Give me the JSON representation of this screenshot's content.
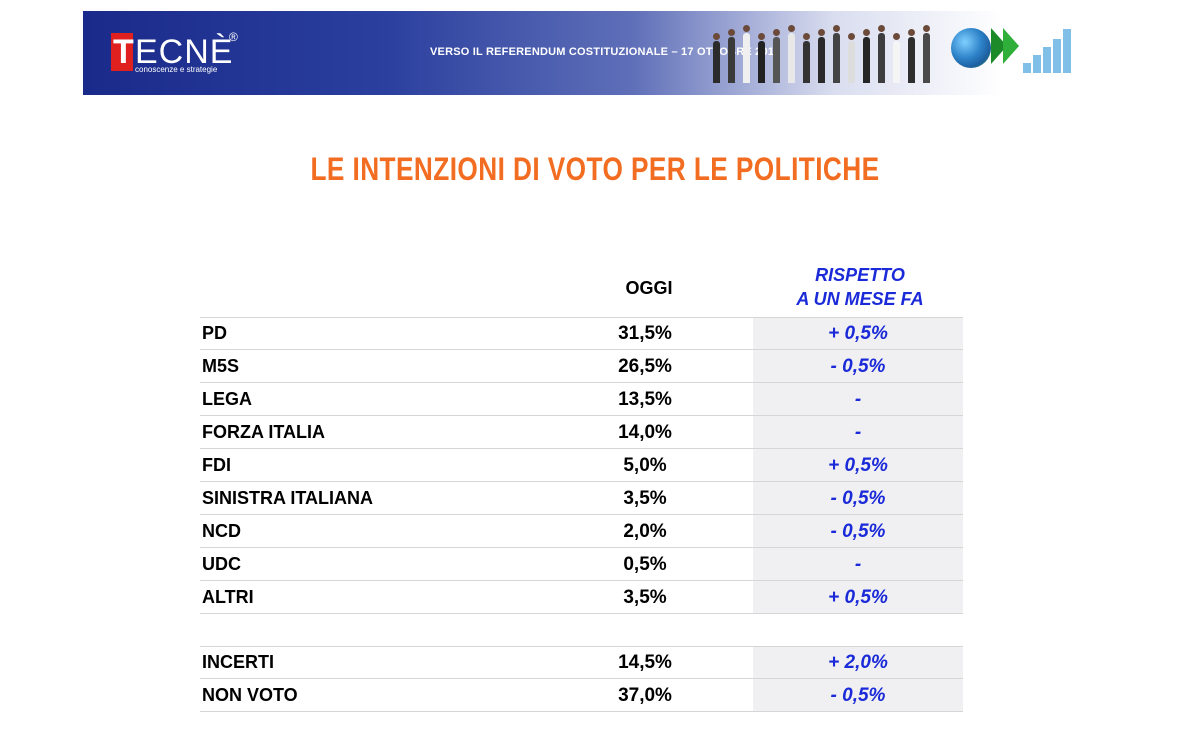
{
  "header": {
    "logo_initial": "T",
    "logo_rest": "ECNÈ",
    "logo_registered": "®",
    "logo_tagline": "conoscenze e strategie",
    "banner_text": "VERSO IL REFERENDUM COSTITUZIONALE – 17 OTTOBRE 2016"
  },
  "title": "LE INTENZIONI DI VOTO PER LE POLITICHE",
  "table": {
    "col_oggi": "OGGI",
    "col_rispetto_line1": "RISPETTO",
    "col_rispetto_line2": "A UN MESE FA",
    "rows": [
      {
        "party": "PD",
        "oggi": "31,5%",
        "delta": "+ 0,5%"
      },
      {
        "party": "M5S",
        "oggi": "26,5%",
        "delta": "- 0,5%"
      },
      {
        "party": "LEGA",
        "oggi": "13,5%",
        "delta": "-"
      },
      {
        "party": "FORZA ITALIA",
        "oggi": "14,0%",
        "delta": "-"
      },
      {
        "party": "FDI",
        "oggi": "5,0%",
        "delta": "+ 0,5%"
      },
      {
        "party": "SINISTRA ITALIANA",
        "oggi": "3,5%",
        "delta": "- 0,5%"
      },
      {
        "party": "NCD",
        "oggi": "2,0%",
        "delta": "- 0,5%"
      },
      {
        "party": "UDC",
        "oggi": "0,5%",
        "delta": "-"
      },
      {
        "party": "ALTRI",
        "oggi": "3,5%",
        "delta": "+ 0,5%"
      }
    ],
    "extra_rows": [
      {
        "party": "INCERTI",
        "oggi": "14,5%",
        "delta": "+ 2,0%"
      },
      {
        "party": "NON VOTO",
        "oggi": "37,0%",
        "delta": "- 0,5%"
      }
    ]
  },
  "colors": {
    "title": "#f26d21",
    "delta_text": "#1a2ad8",
    "banner": "#1a2a8a",
    "logo_red": "#e01f1f"
  },
  "icons": [
    "business-people-image",
    "globe-icon",
    "arrow-chevrons-icon",
    "bar-chart-icon"
  ]
}
